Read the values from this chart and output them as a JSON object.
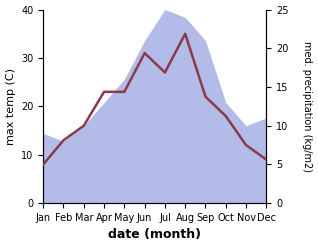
{
  "months": [
    "Jan",
    "Feb",
    "Mar",
    "Apr",
    "May",
    "Jun",
    "Jul",
    "Aug",
    "Sep",
    "Oct",
    "Nov",
    "Dec"
  ],
  "month_positions": [
    0,
    1,
    2,
    3,
    4,
    5,
    6,
    7,
    8,
    9,
    10,
    11
  ],
  "temperature": [
    8,
    13,
    16,
    23,
    23,
    31,
    27,
    35,
    22,
    18,
    12,
    9
  ],
  "precipitation": [
    9,
    8,
    10,
    13,
    16,
    21,
    25,
    24,
    21,
    13,
    10,
    11
  ],
  "temp_color": "#8B3A4A",
  "precip_fill_color": "#b3bce8",
  "precip_fill_alpha": 1.0,
  "xlabel": "date (month)",
  "ylabel_left": "max temp (C)",
  "ylabel_right": "med. precipitation (kg/m2)",
  "ylim_left": [
    0,
    40
  ],
  "ylim_right": [
    0,
    25
  ],
  "yticks_left": [
    0,
    10,
    20,
    30,
    40
  ],
  "yticks_right": [
    0,
    5,
    10,
    15,
    20,
    25
  ],
  "axis_fontsize": 8,
  "tick_fontsize": 7,
  "xlabel_fontsize": 9,
  "xlabel_fontweight": "bold",
  "linewidth": 1.8
}
